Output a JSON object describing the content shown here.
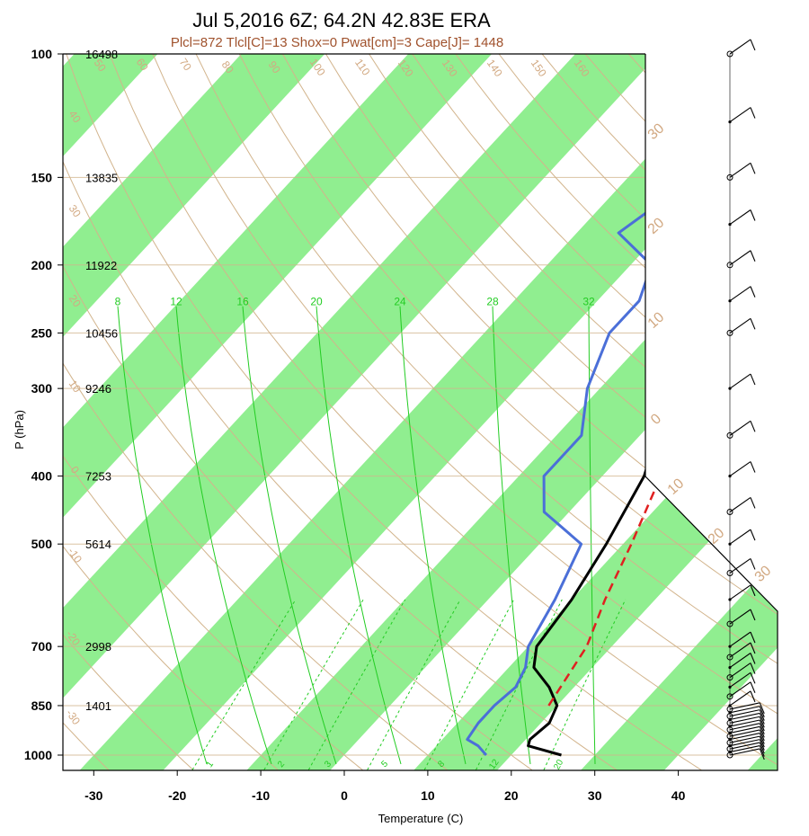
{
  "title": "Jul 5,2016 6Z; 64.2N 42.83E ERA",
  "subtitle": "Plcl=872 Tlcl[C]=13 Shox=0 Pwat[cm]=3 Cape[J]= 1448",
  "colors": {
    "isotherm_band": "#90ee90",
    "temperature": "#000000",
    "dewpoint": "#4b6fd8",
    "parcel": "#e02020",
    "adiabat": "#d2b48c",
    "mixing_ratio": "#22cc22"
  },
  "chart_data": {
    "type": "line",
    "chart_kind": "skew-T log-P",
    "xlabel": "Temperature (C)",
    "ylabel": "P (hPa)",
    "xlim": [
      -33,
      52
    ],
    "ylim": [
      1050,
      100
    ],
    "y_scale": "log",
    "x_ticks": [
      "-30",
      "-20",
      "-10",
      "0",
      "10",
      "20",
      "30",
      "40"
    ],
    "y_ticks": [
      "100",
      "150",
      "200",
      "250",
      "300",
      "400",
      "500",
      "700",
      "850",
      "1000"
    ],
    "heights_m": [
      {
        "p": 100,
        "z": "16498"
      },
      {
        "p": 150,
        "z": "13835"
      },
      {
        "p": 200,
        "z": "11922"
      },
      {
        "p": 250,
        "z": "10456"
      },
      {
        "p": 300,
        "z": "9246"
      },
      {
        "p": 400,
        "z": "7253"
      },
      {
        "p": 500,
        "z": "5614"
      },
      {
        "p": 700,
        "z": "2998"
      },
      {
        "p": 850,
        "z": "1401"
      }
    ],
    "mixing_ratio_top_labels": [
      "8",
      "12",
      "16",
      "20",
      "24",
      "28",
      "32"
    ],
    "mixing_ratio_bottom_labels": [
      "1",
      "2",
      "3",
      "5",
      "8",
      "12",
      "20"
    ],
    "theta_labels": [
      "40",
      "50",
      "60",
      "70",
      "80",
      "90",
      "100",
      "110",
      "120",
      "130",
      "140",
      "150",
      "160",
      "30",
      "20",
      "10",
      "0",
      "-10",
      "-20",
      "-30"
    ],
    "isotherm_labels": [
      "30",
      "20",
      "10",
      "0",
      "10",
      "20",
      "30"
    ],
    "series": [
      {
        "name": "temperature",
        "points": [
          [
            26,
            1000
          ],
          [
            21,
            970
          ],
          [
            20.5,
            950
          ],
          [
            21,
            900
          ],
          [
            20,
            850
          ],
          [
            17,
            800
          ],
          [
            13,
            750
          ],
          [
            11,
            700
          ],
          [
            10,
            600
          ],
          [
            8,
            500
          ],
          [
            5,
            400
          ],
          [
            2,
            350
          ],
          [
            -3.5,
            300
          ],
          [
            -2,
            250
          ],
          [
            1,
            220
          ],
          [
            9,
            180
          ],
          [
            14,
            150
          ],
          [
            22,
            120
          ],
          [
            28,
            100
          ]
        ]
      },
      {
        "name": "dewpoint",
        "points": [
          [
            17,
            1000
          ],
          [
            15,
            970
          ],
          [
            13,
            950
          ],
          [
            12.5,
            900
          ],
          [
            12.5,
            850
          ],
          [
            13,
            800
          ],
          [
            12,
            750
          ],
          [
            10,
            700
          ],
          [
            8,
            600
          ],
          [
            5,
            500
          ],
          [
            -3,
            450
          ],
          [
            -7,
            400
          ],
          [
            -7,
            350
          ],
          [
            -11.5,
            300
          ],
          [
            -15,
            250
          ],
          [
            -15,
            225
          ],
          [
            -17.5,
            200
          ],
          [
            -25,
            180
          ],
          [
            -22,
            150
          ],
          [
            -15,
            120
          ],
          [
            -8,
            100
          ]
        ]
      },
      {
        "name": "parcel",
        "points": [
          [
            19,
            850
          ],
          [
            17,
            700
          ],
          [
            14,
            600
          ],
          [
            11,
            500
          ],
          [
            7,
            400
          ],
          [
            1,
            300
          ]
        ]
      }
    ],
    "wind_barbs": {
      "levels": [
        1000,
        990,
        980,
        970,
        960,
        950,
        940,
        930,
        920,
        910,
        900,
        890,
        880,
        870,
        860,
        850,
        825,
        800,
        775,
        750,
        725,
        700,
        650,
        600,
        550,
        500,
        450,
        400,
        350,
        300,
        250,
        225,
        200,
        175,
        150,
        125,
        100
      ]
    }
  }
}
